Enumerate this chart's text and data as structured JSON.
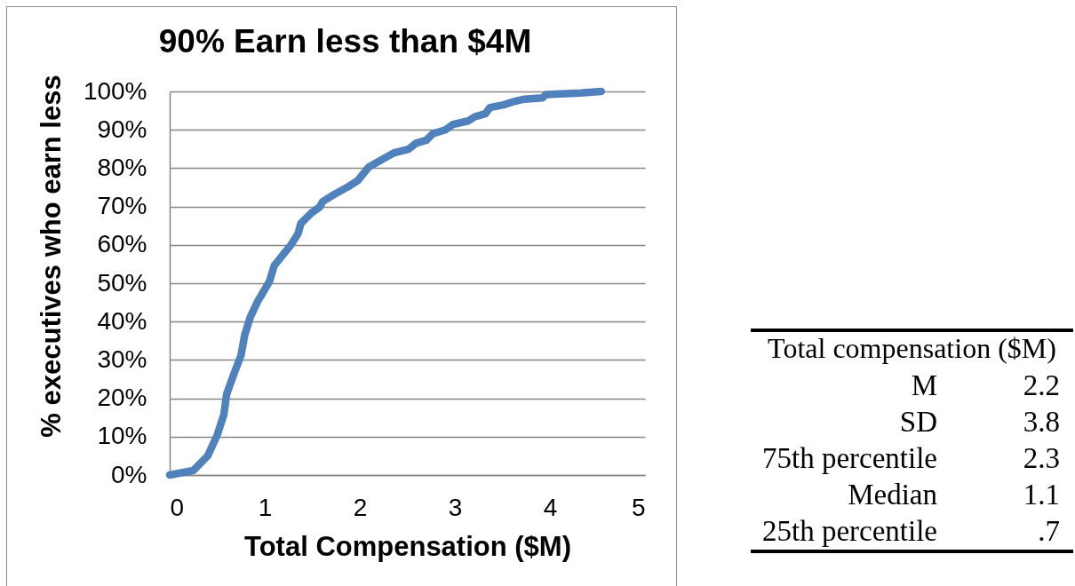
{
  "chart_data": [
    {
      "type": "line",
      "title": "90% Earn less than $4M",
      "xlabel": "Total Compensation ($M)",
      "ylabel": "% executives who earn less",
      "x": [
        0,
        0.25,
        0.4,
        0.5,
        0.57,
        0.6,
        0.68,
        0.75,
        0.79,
        0.85,
        0.93,
        0.96,
        1.05,
        1.1,
        1.27,
        1.35,
        1.38,
        1.49,
        1.58,
        1.61,
        1.72,
        1.88,
        1.98,
        2.09,
        2.23,
        2.36,
        2.51,
        2.59,
        2.7,
        2.77,
        2.9,
        2.98,
        3.14,
        3.21,
        3.32,
        3.37,
        3.51,
        3.64,
        3.73,
        3.92,
        3.96,
        4.32,
        4.54
      ],
      "series": [
        {
          "color": "#4f81bd",
          "values": [
            0,
            1.2,
            5,
            10.4,
            15.8,
            21.2,
            26.6,
            31.2,
            36.6,
            41.3,
            45.5,
            46.7,
            50.5,
            54.6,
            59.8,
            62.9,
            65.6,
            68.3,
            69.9,
            71.3,
            73,
            75.2,
            76.8,
            80.2,
            82.2,
            84,
            84.9,
            86.5,
            87.3,
            89,
            90,
            91.4,
            92.3,
            93.4,
            94.2,
            95.8,
            96.5,
            97.5,
            98,
            98.3,
            99.2,
            99.6,
            100
          ]
        }
      ],
      "xlim": [
        0,
        5
      ],
      "xticks": [
        0,
        1,
        2,
        3,
        4,
        5
      ],
      "ylim": [
        0,
        100
      ],
      "yticks": [
        {
          "value": 0,
          "label": "0%"
        },
        {
          "value": 10,
          "label": "10%"
        },
        {
          "value": 20,
          "label": "20%"
        },
        {
          "value": 30,
          "label": "30%"
        },
        {
          "value": 40,
          "label": "40%"
        },
        {
          "value": 50,
          "label": "50%"
        },
        {
          "value": 60,
          "label": "60%"
        },
        {
          "value": 70,
          "label": "70%"
        },
        {
          "value": 80,
          "label": "80%"
        },
        {
          "value": 90,
          "label": "90%"
        },
        {
          "value": 100,
          "label": "100%"
        }
      ],
      "grid": "y"
    },
    {
      "type": "other",
      "title": "Total compensation ($M)",
      "categories": [
        "M",
        "SD",
        "75th percentile",
        "Median",
        "25th percentile"
      ],
      "values": [
        2.2,
        3.8,
        2.3,
        1.1,
        0.7
      ],
      "value_labels": [
        "2.2",
        "3.8",
        "2.3",
        "1.1",
        ".7"
      ]
    }
  ]
}
